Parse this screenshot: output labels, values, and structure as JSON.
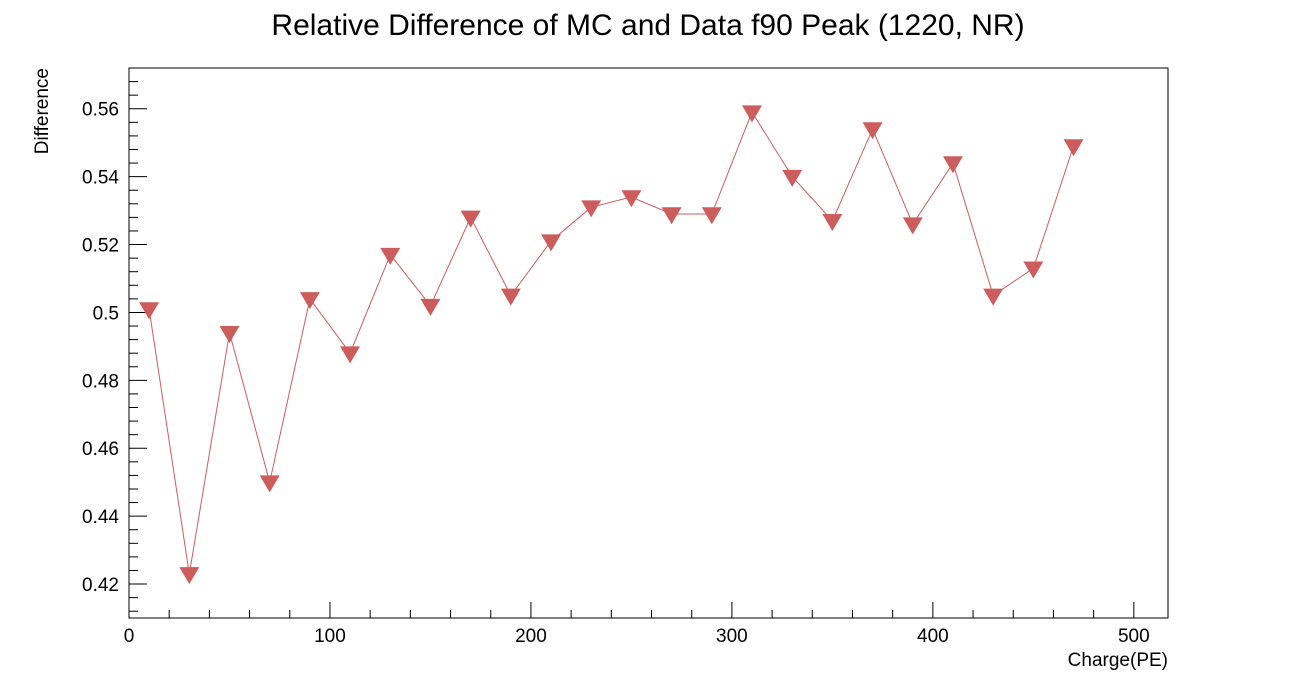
{
  "chart_data": {
    "type": "line",
    "title": "Relative Difference of MC and Data f90 Peak (1220, NR)",
    "xlabel": "Charge(PE)",
    "ylabel": "Difference",
    "xlim": [
      0,
      517
    ],
    "ylim": [
      0.41,
      0.572
    ],
    "x_ticks": [
      0,
      100,
      200,
      300,
      400,
      500
    ],
    "x_tick_labels": [
      "0",
      "100",
      "200",
      "300",
      "400",
      "500"
    ],
    "y_ticks": [
      0.42,
      0.44,
      0.46,
      0.48,
      0.5,
      0.52,
      0.54,
      0.56
    ],
    "y_tick_labels": [
      "0.42",
      "0.44",
      "0.46",
      "0.48",
      "0.5",
      "0.52",
      "0.54",
      "0.56"
    ],
    "grid": false,
    "legend": "none",
    "marker": "inverted-triangle",
    "series": [
      {
        "color": "#cd5c5c",
        "x": [
          10,
          30,
          50,
          70,
          90,
          110,
          130,
          150,
          170,
          190,
          210,
          230,
          250,
          270,
          290,
          310,
          330,
          350,
          370,
          390,
          410,
          430,
          450,
          470
        ],
        "y": [
          0.501,
          0.423,
          0.494,
          0.45,
          0.504,
          0.488,
          0.517,
          0.502,
          0.528,
          0.505,
          0.521,
          0.531,
          0.534,
          0.529,
          0.529,
          0.559,
          0.54,
          0.527,
          0.554,
          0.526,
          0.544,
          0.505,
          0.513,
          0.549
        ]
      }
    ]
  }
}
